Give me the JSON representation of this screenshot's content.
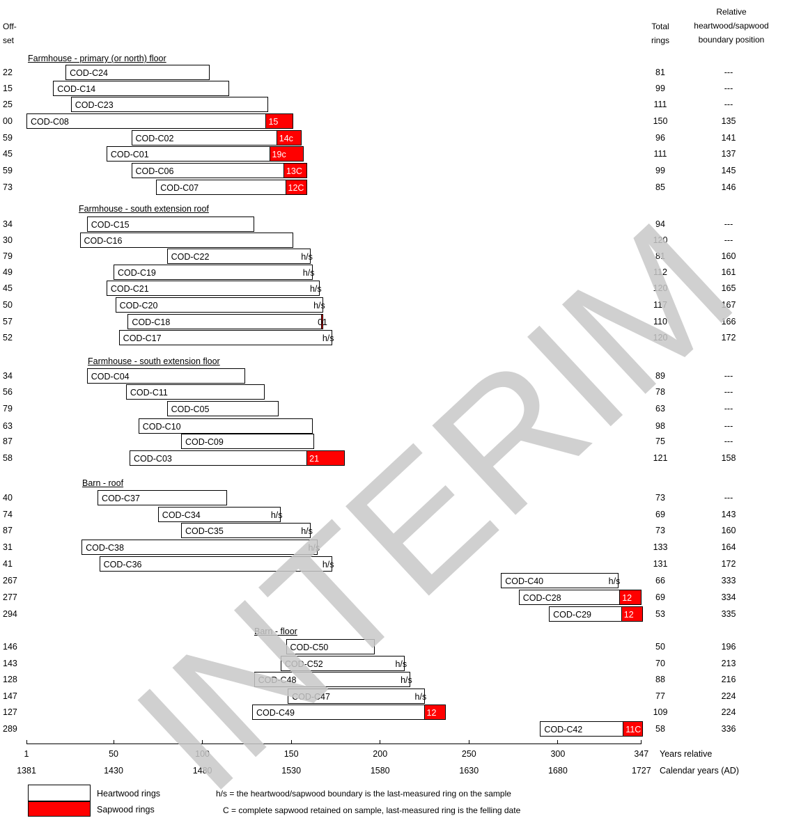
{
  "headers": {
    "offset": "Off-\nset",
    "total": "Total\nrings",
    "relative": "Relative\nheartwood/sapwood\nboundary position"
  },
  "chart_data": {
    "type": "bar",
    "title": "",
    "x_axis_relative": {
      "label": "Years relative",
      "ticks": [
        1,
        50,
        100,
        150,
        200,
        250,
        300,
        347
      ],
      "range": [
        1,
        347
      ]
    },
    "x_axis_calendar": {
      "label": "Calendar years (AD)",
      "ticks": [
        "1381",
        "1430",
        "1480",
        "1530",
        "1580",
        "1630",
        "1680",
        "1727"
      ]
    },
    "groups": [
      {
        "title": "Farmhouse - primary (or north) floor",
        "samples": [
          {
            "name": "COD-C24",
            "offset": "22",
            "total": "81",
            "relative": "---",
            "heartwood": 81,
            "sapwood": 0,
            "end_label": "",
            "sw_label": ""
          },
          {
            "name": "COD-C14",
            "offset": "15",
            "total": "99",
            "relative": "---",
            "heartwood": 99,
            "sapwood": 0,
            "end_label": "",
            "sw_label": ""
          },
          {
            "name": "COD-C23",
            "offset": "25",
            "total": "111",
            "relative": "---",
            "heartwood": 111,
            "sapwood": 0,
            "end_label": "",
            "sw_label": ""
          },
          {
            "name": "COD-C08",
            "offset": "00",
            "total": "150",
            "relative": "135",
            "heartwood": 135,
            "sapwood": 15,
            "end_label": "",
            "sw_label": "15"
          },
          {
            "name": "COD-C02",
            "offset": "59",
            "total": "96",
            "relative": "141",
            "heartwood": 82,
            "sapwood": 14,
            "end_label": "",
            "sw_label": "14c"
          },
          {
            "name": "COD-C01",
            "offset": "45",
            "total": "111",
            "relative": "137",
            "heartwood": 92,
            "sapwood": 19,
            "end_label": "",
            "sw_label": "19c"
          },
          {
            "name": "COD-C06",
            "offset": "59",
            "total": "99",
            "relative": "145",
            "heartwood": 86,
            "sapwood": 13,
            "end_label": "",
            "sw_label": "13C"
          },
          {
            "name": "COD-C07",
            "offset": "73",
            "total": "85",
            "relative": "146",
            "heartwood": 73,
            "sapwood": 12,
            "end_label": "",
            "sw_label": "12C"
          }
        ]
      },
      {
        "title": "Farmhouse - south extension roof",
        "samples": [
          {
            "name": "COD-C15",
            "offset": "34",
            "total": "94",
            "relative": "---",
            "heartwood": 94,
            "sapwood": 0,
            "end_label": "",
            "sw_label": ""
          },
          {
            "name": "COD-C16",
            "offset": "30",
            "total": "120",
            "relative": "---",
            "heartwood": 120,
            "sapwood": 0,
            "end_label": "",
            "sw_label": ""
          },
          {
            "name": "COD-C22",
            "offset": "79",
            "total": "81",
            "relative": "160",
            "heartwood": 81,
            "sapwood": 0,
            "end_label": "h/s",
            "sw_label": ""
          },
          {
            "name": "COD-C19",
            "offset": "49",
            "total": "112",
            "relative": "161",
            "heartwood": 112,
            "sapwood": 0,
            "end_label": "h/s",
            "sw_label": ""
          },
          {
            "name": "COD-C21",
            "offset": "45",
            "total": "120",
            "relative": "165",
            "heartwood": 120,
            "sapwood": 0,
            "end_label": "h/s",
            "sw_label": ""
          },
          {
            "name": "COD-C20",
            "offset": "50",
            "total": "117",
            "relative": "167",
            "heartwood": 117,
            "sapwood": 0,
            "end_label": "h/s",
            "sw_label": ""
          },
          {
            "name": "COD-C18",
            "offset": "57",
            "total": "110",
            "relative": "166",
            "heartwood": 109,
            "sapwood": 1,
            "end_label": "01",
            "sw_label": ""
          },
          {
            "name": "COD-C17",
            "offset": "52",
            "total": "120",
            "relative": "172",
            "heartwood": 120,
            "sapwood": 0,
            "end_label": "h/s",
            "sw_label": ""
          }
        ]
      },
      {
        "title": "Farmhouse - south extension floor",
        "samples": [
          {
            "name": "COD-C04",
            "offset": "34",
            "total": "89",
            "relative": "---",
            "heartwood": 89,
            "sapwood": 0,
            "end_label": "",
            "sw_label": ""
          },
          {
            "name": "COD-C11",
            "offset": "56",
            "total": "78",
            "relative": "---",
            "heartwood": 78,
            "sapwood": 0,
            "end_label": "",
            "sw_label": ""
          },
          {
            "name": "COD-C05",
            "offset": "79",
            "total": "63",
            "relative": "---",
            "heartwood": 63,
            "sapwood": 0,
            "end_label": "",
            "sw_label": ""
          },
          {
            "name": "COD-C10",
            "offset": "63",
            "total": "98",
            "relative": "---",
            "heartwood": 98,
            "sapwood": 0,
            "end_label": "",
            "sw_label": ""
          },
          {
            "name": "COD-C09",
            "offset": "87",
            "total": "75",
            "relative": "---",
            "heartwood": 75,
            "sapwood": 0,
            "end_label": "",
            "sw_label": ""
          },
          {
            "name": "COD-C03",
            "offset": "58",
            "total": "121",
            "relative": "158",
            "heartwood": 100,
            "sapwood": 21,
            "end_label": "",
            "sw_label": "21"
          }
        ]
      },
      {
        "title": "Barn - roof",
        "samples": [
          {
            "name": "COD-C37",
            "offset": "40",
            "total": "73",
            "relative": "---",
            "heartwood": 73,
            "sapwood": 0,
            "end_label": "",
            "sw_label": ""
          },
          {
            "name": "COD-C34",
            "offset": "74",
            "total": "69",
            "relative": "143",
            "heartwood": 69,
            "sapwood": 0,
            "end_label": "h/s",
            "sw_label": ""
          },
          {
            "name": "COD-C35",
            "offset": "87",
            "total": "73",
            "relative": "160",
            "heartwood": 73,
            "sapwood": 0,
            "end_label": "h/s",
            "sw_label": ""
          },
          {
            "name": "COD-C38",
            "offset": "31",
            "total": "133",
            "relative": "164",
            "heartwood": 133,
            "sapwood": 0,
            "end_label": "h/s",
            "sw_label": ""
          },
          {
            "name": "COD-C36",
            "offset": "41",
            "total": "131",
            "relative": "172",
            "heartwood": 131,
            "sapwood": 0,
            "end_label": "h/s",
            "sw_label": ""
          },
          {
            "name": "COD-C40",
            "offset": "267",
            "total": "66",
            "relative": "333",
            "heartwood": 66,
            "sapwood": 0,
            "end_label": "h/s",
            "sw_label": ""
          },
          {
            "name": "COD-C28",
            "offset": "277",
            "total": "69",
            "relative": "334",
            "heartwood": 57,
            "sapwood": 12,
            "end_label": "",
            "sw_label": "12"
          },
          {
            "name": "COD-C29",
            "offset": "294",
            "total": "53",
            "relative": "335",
            "heartwood": 41,
            "sapwood": 12,
            "end_label": "",
            "sw_label": "12"
          }
        ]
      },
      {
        "title": "Barn - floor",
        "samples": [
          {
            "name": "COD-C50",
            "offset": "146",
            "total": "50",
            "relative": "196",
            "heartwood": 50,
            "sapwood": 0,
            "end_label": "",
            "sw_label": ""
          },
          {
            "name": "COD-C52",
            "offset": "143",
            "total": "70",
            "relative": "213",
            "heartwood": 70,
            "sapwood": 0,
            "end_label": "h/s",
            "sw_label": ""
          },
          {
            "name": "COD-C48",
            "offset": "128",
            "total": "88",
            "relative": "216",
            "heartwood": 88,
            "sapwood": 0,
            "end_label": "h/s",
            "sw_label": ""
          },
          {
            "name": "COD-C47",
            "offset": "147",
            "total": "77",
            "relative": "224",
            "heartwood": 77,
            "sapwood": 0,
            "end_label": "h/s",
            "sw_label": ""
          },
          {
            "name": "COD-C49",
            "offset": "127",
            "total": "109",
            "relative": "224",
            "heartwood": 97,
            "sapwood": 12,
            "end_label": "",
            "sw_label": "12"
          },
          {
            "name": "COD-C42",
            "offset": "289",
            "total": "58",
            "relative": "336",
            "heartwood": 47,
            "sapwood": 11,
            "end_label": "",
            "sw_label": "11C"
          }
        ]
      }
    ]
  },
  "legend": {
    "heartwood": "Heartwood rings",
    "sapwood": "Sapwood rings",
    "heartwood_color": "#ffffff",
    "sapwood_color": "#ff0000",
    "note_hs": "h/s = the heartwood/sapwood boundary is the last-measured ring on the sample",
    "note_c": "C = complete sapwood retained on sample, last-measured ring is the felling date"
  },
  "watermark": "INTERIM"
}
